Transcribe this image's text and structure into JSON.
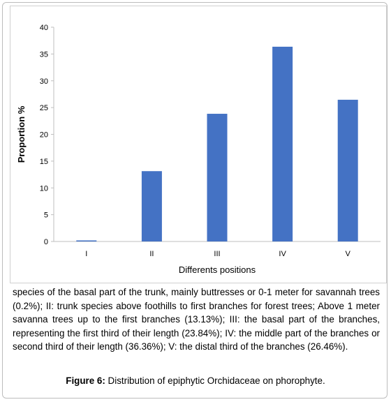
{
  "chart_data": {
    "type": "bar",
    "categories": [
      "I",
      "II",
      "III",
      "IV",
      "V"
    ],
    "values": [
      0.2,
      13.13,
      23.84,
      36.36,
      26.46
    ],
    "title": "",
    "xlabel": "Differents positions",
    "ylabel": "Proportion %",
    "ylim": [
      0,
      40
    ],
    "yticks": [
      "0",
      "5",
      "10",
      "15",
      "20",
      "25",
      "30",
      "35",
      "40"
    ],
    "bar_color": "#4472c4",
    "grid": false
  },
  "caption": {
    "body": "species of the basal part of the trunk, mainly buttresses or 0-1 meter for savannah trees (0.2%); II: trunk species above foothills to first branches for forest trees; Above 1 meter savanna trees up to the first branches (13.13%); III: the basal part of the branches, representing the first third of their length (23.84%); IV: the middle part of the branches or second third of their length (36.36%); V: the distal third of the branches (26.46%).",
    "figure_label": "Figure 6:",
    "figure_text": " Distribution of epiphytic Orchidaceae on phorophyte."
  }
}
